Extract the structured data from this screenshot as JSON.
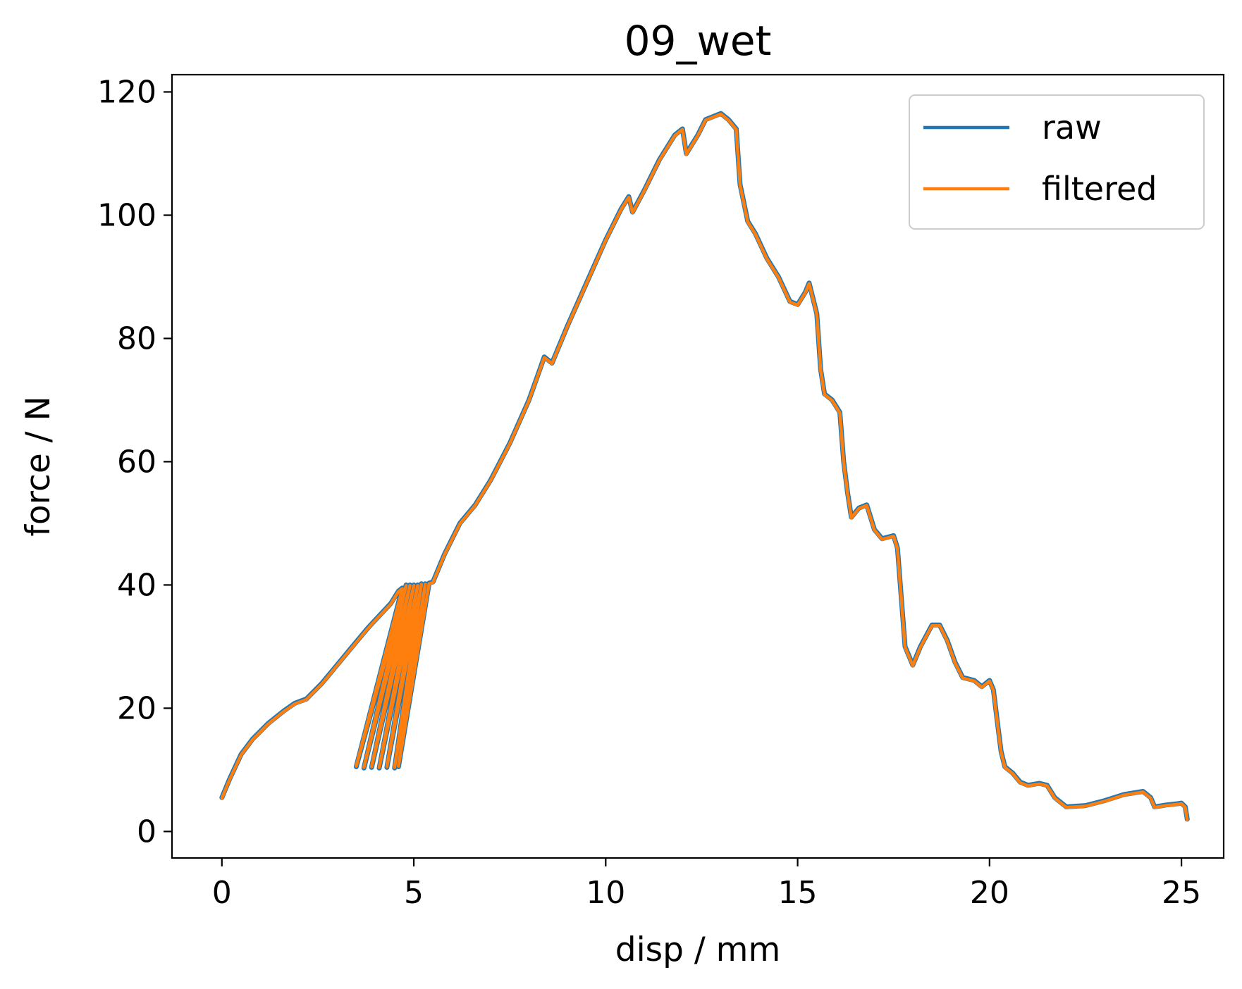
{
  "chart_data": {
    "type": "line",
    "title": "09_wet",
    "xlabel": "disp / mm",
    "ylabel": "force / N",
    "xlim": [
      -1.3,
      26.1
    ],
    "ylim": [
      -4.3,
      122.8
    ],
    "xticks": [
      0,
      5,
      10,
      15,
      20,
      25
    ],
    "yticks": [
      0,
      20,
      40,
      60,
      80,
      100,
      120
    ],
    "grid": false,
    "legend": "top-right",
    "series": [
      {
        "name": "raw",
        "color": "#1f77b4",
        "points": [
          [
            0.0,
            5.5
          ],
          [
            0.2,
            8.5
          ],
          [
            0.5,
            12.5
          ],
          [
            0.8,
            15.0
          ],
          [
            1.2,
            17.5
          ],
          [
            1.6,
            19.5
          ],
          [
            1.9,
            20.8
          ],
          [
            2.2,
            21.5
          ],
          [
            2.6,
            24.0
          ],
          [
            3.0,
            27.0
          ],
          [
            3.4,
            30.0
          ],
          [
            3.8,
            33.0
          ],
          [
            4.1,
            35.0
          ],
          [
            4.4,
            37.0
          ],
          [
            4.6,
            39.0
          ],
          [
            4.7,
            39.5
          ],
          [
            3.5,
            10.5
          ],
          [
            4.8,
            40.0
          ],
          [
            3.7,
            10.3
          ],
          [
            4.9,
            40.0
          ],
          [
            3.9,
            10.4
          ],
          [
            5.0,
            40.0
          ],
          [
            4.1,
            10.3
          ],
          [
            5.1,
            40.0
          ],
          [
            4.3,
            10.4
          ],
          [
            5.2,
            40.2
          ],
          [
            4.5,
            10.3
          ],
          [
            5.3,
            40.2
          ],
          [
            4.6,
            10.5
          ],
          [
            5.4,
            40.3
          ],
          [
            5.5,
            40.5
          ],
          [
            5.8,
            45.0
          ],
          [
            6.2,
            50.0
          ],
          [
            6.6,
            53.0
          ],
          [
            7.0,
            57.0
          ],
          [
            7.5,
            63.0
          ],
          [
            8.0,
            70.0
          ],
          [
            8.4,
            77.0
          ],
          [
            8.6,
            76.0
          ],
          [
            9.0,
            82.0
          ],
          [
            9.5,
            89.0
          ],
          [
            10.0,
            96.0
          ],
          [
            10.4,
            101.0
          ],
          [
            10.6,
            103.0
          ],
          [
            10.7,
            100.5
          ],
          [
            11.0,
            104.0
          ],
          [
            11.4,
            109.0
          ],
          [
            11.8,
            113.0
          ],
          [
            12.0,
            114.0
          ],
          [
            12.1,
            110.0
          ],
          [
            12.4,
            113.0
          ],
          [
            12.6,
            115.5
          ],
          [
            12.8,
            116.0
          ],
          [
            13.0,
            116.5
          ],
          [
            13.2,
            115.5
          ],
          [
            13.4,
            114.0
          ],
          [
            13.5,
            105.0
          ],
          [
            13.7,
            99.0
          ],
          [
            13.9,
            97.0
          ],
          [
            14.2,
            93.0
          ],
          [
            14.5,
            90.0
          ],
          [
            14.8,
            86.0
          ],
          [
            15.0,
            85.5
          ],
          [
            15.2,
            87.5
          ],
          [
            15.3,
            89.0
          ],
          [
            15.5,
            84.0
          ],
          [
            15.6,
            75.0
          ],
          [
            15.7,
            71.0
          ],
          [
            15.9,
            70.0
          ],
          [
            16.1,
            68.0
          ],
          [
            16.2,
            60.0
          ],
          [
            16.3,
            55.0
          ],
          [
            16.4,
            51.0
          ],
          [
            16.6,
            52.5
          ],
          [
            16.8,
            53.0
          ],
          [
            17.0,
            49.0
          ],
          [
            17.2,
            47.5
          ],
          [
            17.5,
            48.0
          ],
          [
            17.6,
            46.0
          ],
          [
            17.8,
            30.0
          ],
          [
            18.0,
            27.0
          ],
          [
            18.2,
            30.0
          ],
          [
            18.5,
            33.5
          ],
          [
            18.7,
            33.5
          ],
          [
            18.9,
            31.0
          ],
          [
            19.1,
            27.5
          ],
          [
            19.3,
            25.0
          ],
          [
            19.6,
            24.5
          ],
          [
            19.8,
            23.5
          ],
          [
            20.0,
            24.5
          ],
          [
            20.1,
            23.0
          ],
          [
            20.2,
            18.0
          ],
          [
            20.3,
            13.0
          ],
          [
            20.4,
            10.5
          ],
          [
            20.6,
            9.5
          ],
          [
            20.8,
            8.0
          ],
          [
            21.0,
            7.5
          ],
          [
            21.3,
            7.8
          ],
          [
            21.5,
            7.5
          ],
          [
            21.7,
            5.5
          ],
          [
            22.0,
            4.0
          ],
          [
            22.5,
            4.2
          ],
          [
            23.0,
            5.0
          ],
          [
            23.5,
            6.0
          ],
          [
            24.0,
            6.5
          ],
          [
            24.2,
            5.5
          ],
          [
            24.3,
            4.0
          ],
          [
            24.6,
            4.3
          ],
          [
            24.9,
            4.5
          ],
          [
            25.0,
            4.6
          ],
          [
            25.1,
            4.0
          ],
          [
            25.15,
            2.0
          ]
        ]
      },
      {
        "name": "filtered",
        "color": "#ff7f0e",
        "points": [
          [
            0.0,
            5.4
          ],
          [
            0.2,
            8.4
          ],
          [
            0.5,
            12.4
          ],
          [
            0.8,
            14.9
          ],
          [
            1.2,
            17.4
          ],
          [
            1.6,
            19.4
          ],
          [
            1.9,
            20.7
          ],
          [
            2.2,
            21.4
          ],
          [
            2.6,
            23.9
          ],
          [
            3.0,
            26.9
          ],
          [
            3.4,
            29.9
          ],
          [
            3.8,
            32.9
          ],
          [
            4.1,
            34.9
          ],
          [
            4.4,
            36.9
          ],
          [
            4.6,
            38.9
          ],
          [
            4.7,
            39.4
          ],
          [
            3.5,
            10.6
          ],
          [
            4.8,
            39.9
          ],
          [
            3.7,
            10.4
          ],
          [
            4.9,
            39.9
          ],
          [
            3.9,
            10.5
          ],
          [
            5.0,
            39.9
          ],
          [
            4.1,
            10.4
          ],
          [
            5.1,
            39.9
          ],
          [
            4.3,
            10.5
          ],
          [
            5.2,
            40.1
          ],
          [
            4.5,
            10.4
          ],
          [
            5.3,
            40.1
          ],
          [
            4.6,
            10.6
          ],
          [
            5.4,
            40.2
          ],
          [
            5.5,
            40.4
          ],
          [
            5.8,
            44.9
          ],
          [
            6.2,
            49.9
          ],
          [
            6.6,
            52.9
          ],
          [
            7.0,
            56.9
          ],
          [
            7.5,
            62.9
          ],
          [
            8.0,
            69.9
          ],
          [
            8.4,
            76.9
          ],
          [
            8.6,
            75.9
          ],
          [
            9.0,
            81.9
          ],
          [
            9.5,
            88.9
          ],
          [
            10.0,
            95.9
          ],
          [
            10.4,
            100.9
          ],
          [
            10.6,
            102.9
          ],
          [
            10.7,
            100.4
          ],
          [
            11.0,
            103.9
          ],
          [
            11.4,
            108.9
          ],
          [
            11.8,
            112.9
          ],
          [
            12.0,
            113.9
          ],
          [
            12.1,
            109.9
          ],
          [
            12.4,
            112.9
          ],
          [
            12.6,
            115.4
          ],
          [
            12.8,
            115.9
          ],
          [
            13.0,
            116.4
          ],
          [
            13.2,
            115.4
          ],
          [
            13.4,
            113.9
          ],
          [
            13.5,
            104.9
          ],
          [
            13.7,
            98.9
          ],
          [
            13.9,
            96.9
          ],
          [
            14.2,
            92.9
          ],
          [
            14.5,
            89.9
          ],
          [
            14.8,
            85.9
          ],
          [
            15.0,
            85.4
          ],
          [
            15.2,
            87.4
          ],
          [
            15.3,
            88.9
          ],
          [
            15.5,
            83.9
          ],
          [
            15.6,
            74.9
          ],
          [
            15.7,
            70.9
          ],
          [
            15.9,
            69.9
          ],
          [
            16.1,
            67.9
          ],
          [
            16.2,
            59.9
          ],
          [
            16.3,
            54.9
          ],
          [
            16.4,
            50.9
          ],
          [
            16.6,
            52.4
          ],
          [
            16.8,
            52.9
          ],
          [
            17.0,
            48.9
          ],
          [
            17.2,
            47.4
          ],
          [
            17.5,
            47.9
          ],
          [
            17.6,
            45.9
          ],
          [
            17.8,
            29.9
          ],
          [
            18.0,
            26.9
          ],
          [
            18.2,
            29.9
          ],
          [
            18.5,
            33.4
          ],
          [
            18.7,
            33.4
          ],
          [
            18.9,
            30.9
          ],
          [
            19.1,
            27.4
          ],
          [
            19.3,
            24.9
          ],
          [
            19.6,
            24.4
          ],
          [
            19.8,
            23.4
          ],
          [
            20.0,
            24.4
          ],
          [
            20.1,
            22.9
          ],
          [
            20.2,
            17.9
          ],
          [
            20.3,
            12.9
          ],
          [
            20.4,
            10.4
          ],
          [
            20.6,
            9.4
          ],
          [
            20.8,
            7.9
          ],
          [
            21.0,
            7.4
          ],
          [
            21.3,
            7.7
          ],
          [
            21.5,
            7.4
          ],
          [
            21.7,
            5.4
          ],
          [
            22.0,
            3.9
          ],
          [
            22.5,
            4.1
          ],
          [
            23.0,
            4.9
          ],
          [
            23.5,
            5.9
          ],
          [
            24.0,
            6.4
          ],
          [
            24.2,
            5.4
          ],
          [
            24.3,
            3.9
          ],
          [
            24.6,
            4.2
          ],
          [
            24.9,
            4.4
          ],
          [
            25.0,
            4.5
          ],
          [
            25.1,
            3.9
          ],
          [
            25.15,
            1.9
          ]
        ]
      }
    ]
  }
}
